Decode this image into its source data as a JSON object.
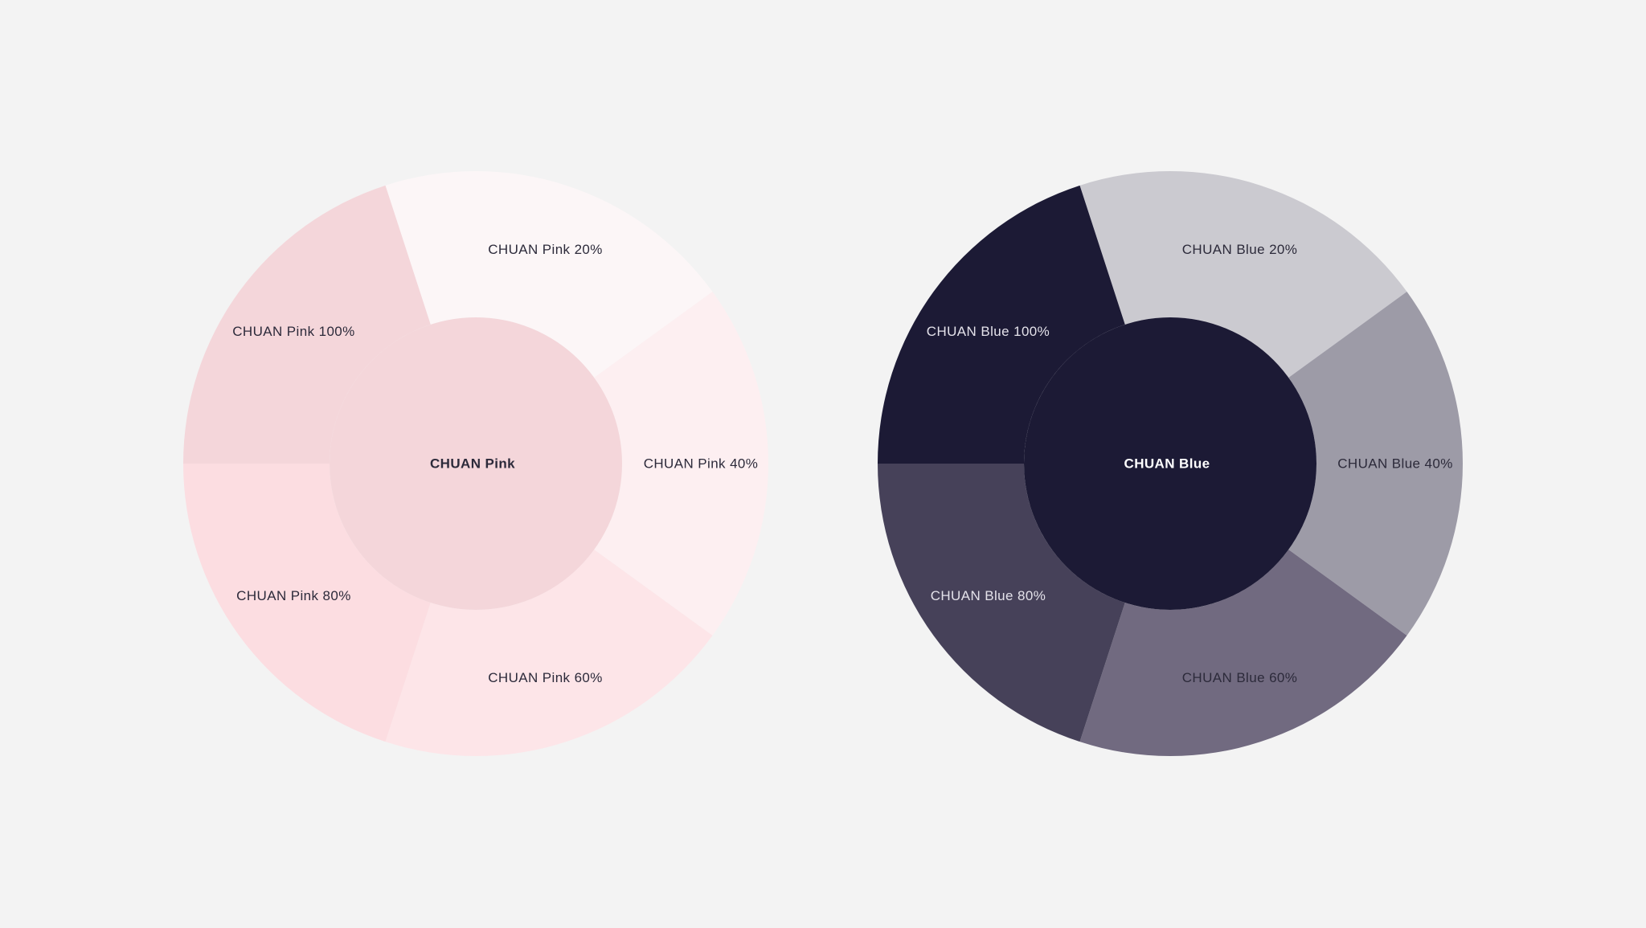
{
  "background_color": "#f3f3f3",
  "chart_data": [
    {
      "type": "pie",
      "name": "pink",
      "center_label": "CHUAN Pink",
      "center_color": "#f4d6da",
      "center_text_color": "#2c2a3a",
      "slices": [
        {
          "label": "CHUAN Pink 20%",
          "value": 20,
          "color": "#fcf6f7",
          "text_color": "#2c2a3a"
        },
        {
          "label": "CHUAN Pink 40%",
          "value": 20,
          "color": "#fdeff1",
          "text_color": "#2c2a3a"
        },
        {
          "label": "CHUAN Pink 60%",
          "value": 20,
          "color": "#fde5e8",
          "text_color": "#2c2a3a"
        },
        {
          "label": "CHUAN Pink 80%",
          "value": 20,
          "color": "#fcdde1",
          "text_color": "#2c2a3a"
        },
        {
          "label": "CHUAN Pink 100%",
          "value": 20,
          "color": "#f4d6da",
          "text_color": "#2c2a3a"
        }
      ]
    },
    {
      "type": "pie",
      "name": "blue",
      "center_label": "CHUAN Blue",
      "center_color": "#1c1a35",
      "center_text_color": "#ffffff",
      "slices": [
        {
          "label": "CHUAN Blue 20%",
          "value": 20,
          "color": "#cbcad0",
          "text_color": "#2c2a3a"
        },
        {
          "label": "CHUAN Blue 40%",
          "value": 20,
          "color": "#9d9ba7",
          "text_color": "#2c2a3a"
        },
        {
          "label": "CHUAN Blue 60%",
          "value": 20,
          "color": "#716a80",
          "text_color": "#2c2a3a"
        },
        {
          "label": "CHUAN Blue 80%",
          "value": 20,
          "color": "#464159",
          "text_color": "#e4e2ea"
        },
        {
          "label": "CHUAN Blue 100%",
          "value": 20,
          "color": "#1c1a35",
          "text_color": "#e4e2ea"
        }
      ]
    }
  ]
}
